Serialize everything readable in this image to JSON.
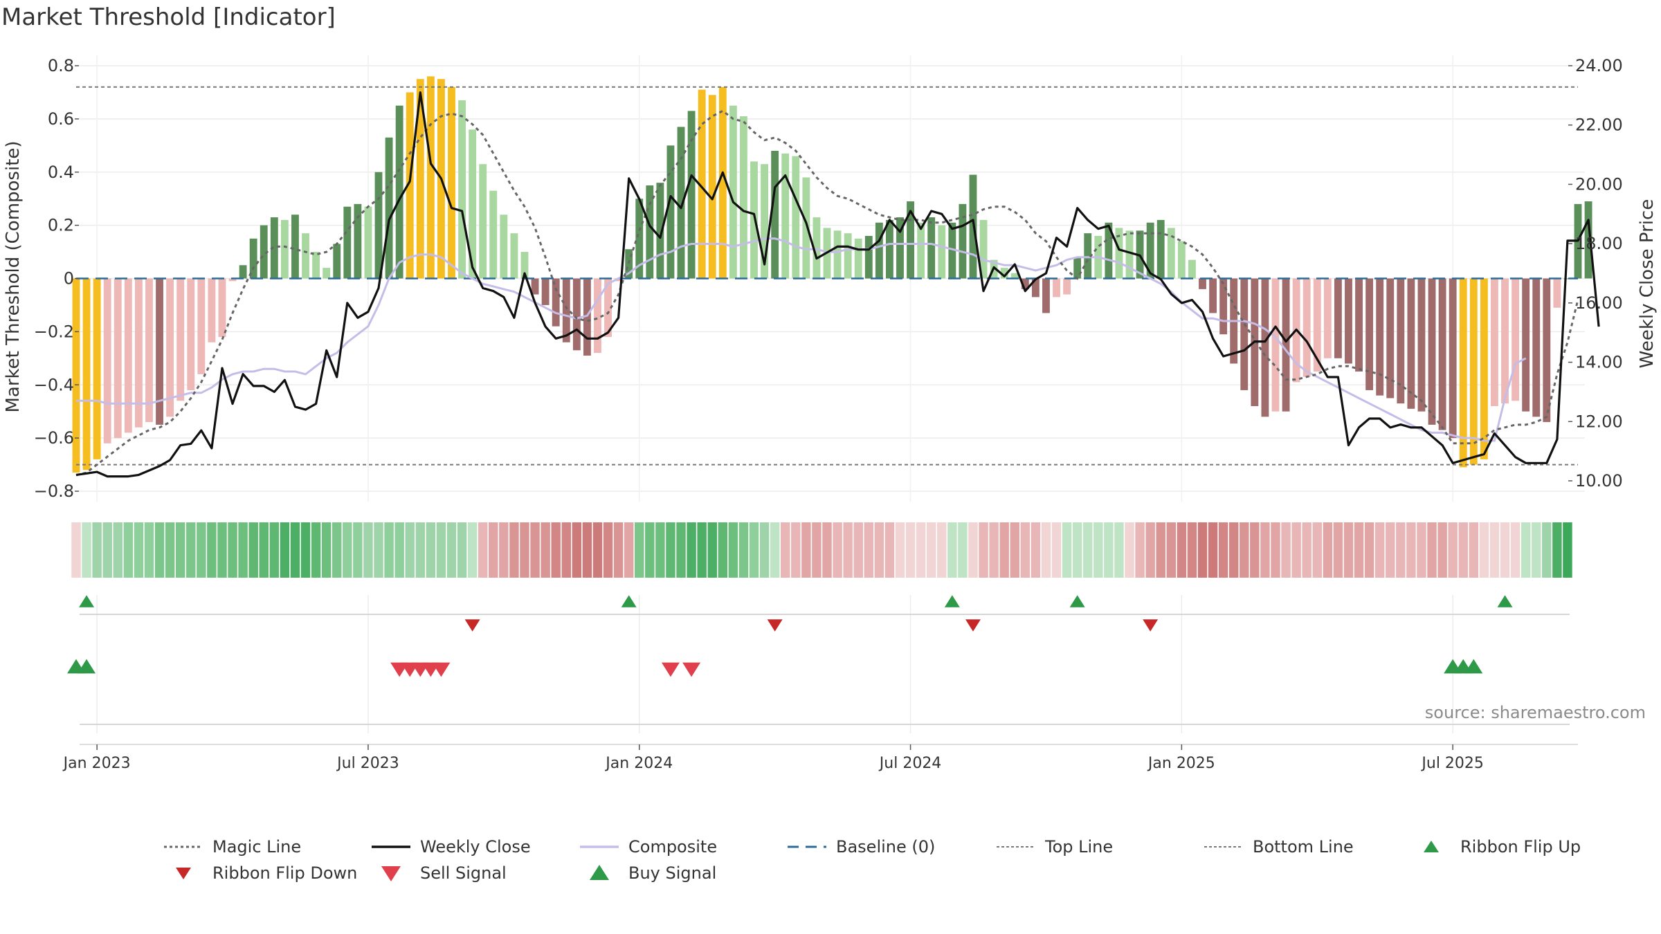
{
  "chart_data": {
    "type": "bar",
    "title": "Market Threshold [Indicator]",
    "ylabel_left": "Market Threshold (Composite)",
    "ylabel_right": "Weekly Close Price",
    "source": "source: sharemaestro.com",
    "ylim_left": [
      -0.8,
      0.8
    ],
    "ylim_right": [
      10,
      24
    ],
    "yticks_left": [
      0.8,
      0.6,
      0.4,
      0.2,
      0,
      -0.2,
      -0.4,
      -0.6,
      -0.8
    ],
    "ytick_labels_left": [
      "0.8",
      "0.6",
      "0.4",
      "0.2",
      "0",
      "−0.2",
      "−0.4",
      "−0.6",
      "−0.8"
    ],
    "yticks_right": [
      24,
      22,
      20,
      18,
      16,
      14,
      12,
      10
    ],
    "ytick_labels_right": [
      "24.00",
      "22.00",
      "20.00",
      "18.00",
      "16.00",
      "14.00",
      "12.00",
      "10.00"
    ],
    "top_line": 0.72,
    "bottom_line": -0.7,
    "baseline": 0,
    "x_start_week": -1,
    "n_weeks": 145,
    "x_ticks": [
      {
        "week": 1,
        "label": "Jan 2023"
      },
      {
        "week": 27,
        "label": "Jul 2023"
      },
      {
        "week": 53,
        "label": "Jan 2024"
      },
      {
        "week": 79,
        "label": "Jul 2024"
      },
      {
        "week": 105,
        "label": "Jan 2025"
      },
      {
        "week": 131,
        "label": "Jul 2025"
      }
    ],
    "composite_bars": [
      -0.73,
      -0.72,
      -0.68,
      -0.62,
      -0.6,
      -0.58,
      -0.56,
      -0.54,
      -0.55,
      -0.52,
      -0.46,
      -0.42,
      -0.36,
      -0.24,
      -0.22,
      -0.01,
      0.05,
      0.15,
      0.2,
      0.23,
      0.22,
      0.24,
      0.17,
      0.1,
      0.04,
      0.13,
      0.27,
      0.28,
      0.27,
      0.4,
      0.53,
      0.65,
      0.7,
      0.75,
      0.76,
      0.75,
      0.72,
      0.67,
      0.56,
      0.43,
      0.33,
      0.24,
      0.17,
      0.1,
      -0.06,
      -0.1,
      -0.18,
      -0.24,
      -0.27,
      -0.29,
      -0.28,
      -0.22,
      -0.01,
      0.11,
      0.3,
      0.35,
      0.36,
      0.5,
      0.57,
      0.63,
      0.71,
      0.69,
      0.72,
      0.65,
      0.61,
      0.44,
      0.43,
      0.48,
      0.47,
      0.46,
      0.38,
      0.23,
      0.19,
      0.18,
      0.17,
      0.15,
      0.16,
      0.21,
      0.22,
      0.23,
      0.29,
      0.21,
      0.23,
      0.2,
      0.21,
      0.28,
      0.39,
      0.22,
      0.07,
      0.04,
      0.02,
      -0.04,
      -0.07,
      -0.13,
      -0.07,
      -0.06,
      0.08,
      0.17,
      0.16,
      0.21,
      0.19,
      0.18,
      0.18,
      0.21,
      0.22,
      0.19,
      0.14,
      0.07,
      -0.04,
      -0.13,
      -0.21,
      -0.32,
      -0.42,
      -0.48,
      -0.52,
      -0.5,
      -0.5,
      -0.39,
      -0.37,
      -0.35,
      -0.3,
      -0.3,
      -0.32,
      -0.35,
      -0.42,
      -0.44,
      -0.45,
      -0.47,
      -0.49,
      -0.5,
      -0.55,
      -0.57,
      -0.6,
      -0.71,
      -0.7,
      -0.68,
      -0.48,
      -0.47,
      -0.46,
      -0.5,
      -0.52,
      -0.54,
      -0.11,
      0.0,
      0.28,
      0.29
    ],
    "weekly_close": [
      10.2,
      10.25,
      10.3,
      10.15,
      10.15,
      10.15,
      10.2,
      10.35,
      10.5,
      10.7,
      11.2,
      11.25,
      11.7,
      11.1,
      13.8,
      12.6,
      13.6,
      13.2,
      13.2,
      13.0,
      13.4,
      12.5,
      12.4,
      12.6,
      14.4,
      13.5,
      16.0,
      15.5,
      15.7,
      16.5,
      18.8,
      19.5,
      20.1,
      23.1,
      20.7,
      20.2,
      19.2,
      19.1,
      17.2,
      16.5,
      16.4,
      16.2,
      15.5,
      17.0,
      16.0,
      15.2,
      14.8,
      14.9,
      15.1,
      14.8,
      14.8,
      15.0,
      15.5,
      20.2,
      19.5,
      18.6,
      18.2,
      19.6,
      19.2,
      20.3,
      19.9,
      19.5,
      20.4,
      19.4,
      19.1,
      19.0,
      17.3,
      19.9,
      20.3,
      19.5,
      18.7,
      17.5,
      17.7,
      17.9,
      17.9,
      17.8,
      17.8,
      18.1,
      18.8,
      18.4,
      19.1,
      18.5,
      19.1,
      19.0,
      18.5,
      18.6,
      18.8,
      16.4,
      17.2,
      16.9,
      17.3,
      16.4,
      16.8,
      17.0,
      18.2,
      17.9,
      19.2,
      18.8,
      18.5,
      18.6,
      17.8,
      17.7,
      17.6,
      17.0,
      16.8,
      16.3,
      16.0,
      16.1,
      15.7,
      14.8,
      14.2,
      14.3,
      14.4,
      14.7,
      14.7,
      15.2,
      14.7,
      15.1,
      14.7,
      14.1,
      13.5,
      13.5,
      11.2,
      11.8,
      12.1,
      12.1,
      11.8,
      11.9,
      11.8,
      11.8,
      11.5,
      11.2,
      10.6,
      10.7,
      10.8,
      10.9,
      11.6,
      11.2,
      10.8,
      10.6,
      10.6,
      10.6,
      11.4,
      18.1,
      18.1,
      18.8,
      15.2
    ],
    "magic_line": [
      -0.74,
      -0.73,
      -0.7,
      -0.67,
      -0.64,
      -0.61,
      -0.59,
      -0.57,
      -0.56,
      -0.54,
      -0.5,
      -0.45,
      -0.39,
      -0.31,
      -0.23,
      -0.13,
      -0.04,
      0.04,
      0.09,
      0.12,
      0.12,
      0.11,
      0.1,
      0.09,
      0.1,
      0.13,
      0.18,
      0.23,
      0.27,
      0.3,
      0.35,
      0.41,
      0.47,
      0.53,
      0.58,
      0.61,
      0.62,
      0.61,
      0.58,
      0.54,
      0.47,
      0.4,
      0.33,
      0.27,
      0.19,
      0.08,
      -0.04,
      -0.11,
      -0.15,
      -0.16,
      -0.15,
      -0.13,
      -0.06,
      0.06,
      0.18,
      0.28,
      0.35,
      0.4,
      0.45,
      0.52,
      0.58,
      0.61,
      0.63,
      0.6,
      0.59,
      0.55,
      0.52,
      0.53,
      0.51,
      0.48,
      0.43,
      0.38,
      0.34,
      0.31,
      0.3,
      0.28,
      0.26,
      0.24,
      0.23,
      0.22,
      0.22,
      0.22,
      0.21,
      0.21,
      0.22,
      0.23,
      0.24,
      0.26,
      0.27,
      0.27,
      0.25,
      0.22,
      0.17,
      0.14,
      0.08,
      0.03,
      0.0,
      0.07,
      0.12,
      0.15,
      0.16,
      0.17,
      0.17,
      0.17,
      0.17,
      0.16,
      0.14,
      0.12,
      0.09,
      0.04,
      -0.02,
      -0.1,
      -0.17,
      -0.23,
      -0.29,
      -0.33,
      -0.38,
      -0.38,
      -0.37,
      -0.36,
      -0.34,
      -0.33,
      -0.33,
      -0.34,
      -0.35,
      -0.36,
      -0.38,
      -0.4,
      -0.43,
      -0.46,
      -0.51,
      -0.56,
      -0.62,
      -0.62,
      -0.62,
      -0.6,
      -0.57,
      -0.56,
      -0.55,
      -0.55,
      -0.54,
      -0.52,
      -0.36,
      -0.24,
      -0.08
    ],
    "composite_line": [
      -0.46,
      -0.46,
      -0.46,
      -0.47,
      -0.47,
      -0.47,
      -0.47,
      -0.47,
      -0.46,
      -0.45,
      -0.44,
      -0.43,
      -0.43,
      -0.41,
      -0.38,
      -0.36,
      -0.35,
      -0.35,
      -0.34,
      -0.34,
      -0.35,
      -0.35,
      -0.36,
      -0.33,
      -0.3,
      -0.28,
      -0.24,
      -0.21,
      -0.18,
      -0.1,
      0.0,
      0.06,
      0.08,
      0.09,
      0.09,
      0.08,
      0.05,
      0.02,
      0.0,
      -0.02,
      -0.03,
      -0.04,
      -0.05,
      -0.07,
      -0.09,
      -0.11,
      -0.13,
      -0.14,
      -0.15,
      -0.14,
      -0.08,
      -0.02,
      0.0,
      0.02,
      0.05,
      0.07,
      0.09,
      0.1,
      0.12,
      0.13,
      0.13,
      0.13,
      0.13,
      0.12,
      0.13,
      0.14,
      0.15,
      0.15,
      0.14,
      0.12,
      0.11,
      0.11,
      0.1,
      0.1,
      0.11,
      0.11,
      0.11,
      0.12,
      0.13,
      0.13,
      0.13,
      0.13,
      0.13,
      0.12,
      0.11,
      0.1,
      0.09,
      0.07,
      0.06,
      0.05,
      0.05,
      0.04,
      0.03,
      0.04,
      0.05,
      0.07,
      0.08,
      0.08,
      0.08,
      0.07,
      0.06,
      0.04,
      0.02,
      0.0,
      -0.02,
      -0.05,
      -0.09,
      -0.12,
      -0.15,
      -0.15,
      -0.16,
      -0.16,
      -0.16,
      -0.17,
      -0.19,
      -0.22,
      -0.27,
      -0.32,
      -0.35,
      -0.37,
      -0.39,
      -0.41,
      -0.43,
      -0.45,
      -0.47,
      -0.49,
      -0.51,
      -0.53,
      -0.55,
      -0.57,
      -0.58,
      -0.58,
      -0.59,
      -0.6,
      -0.6,
      -0.61,
      -0.61,
      -0.45,
      -0.32,
      -0.3
    ],
    "ribbon_colors": [
      "#f1d4d4",
      "#bfe3c5",
      "#9fd4aa",
      "#9fd4aa",
      "#9fd4aa",
      "#8fcf9c",
      "#8fcf9c",
      "#8fcf9c",
      "#7cc68b",
      "#7cc68b",
      "#7cc68b",
      "#7cc68b",
      "#7cc68b",
      "#6dbf7e",
      "#6dbf7e",
      "#6dbf7e",
      "#6dbf7e",
      "#5fb872",
      "#5fb872",
      "#5fb872",
      "#4dae66",
      "#4dae66",
      "#4dae66",
      "#5fb872",
      "#6dbf7e",
      "#7cc68b",
      "#8fcf9c",
      "#8fcf9c",
      "#9fd4aa",
      "#9fd4aa",
      "#8fcf9c",
      "#8fcf9c",
      "#9fd4aa",
      "#9fd4aa",
      "#9fd4aa",
      "#9fd4aa",
      "#9fd4aa",
      "#9fd4aa",
      "#bfe3c5",
      "#e8b6b6",
      "#e1a5a5",
      "#e1a5a5",
      "#d99494",
      "#d99494",
      "#d99494",
      "#d99494",
      "#d38686",
      "#d38686",
      "#cc7a7a",
      "#cc7a7a",
      "#cc7a7a",
      "#d38686",
      "#d99494",
      "#e1a5a5",
      "#7cc68b",
      "#6dbf7e",
      "#6dbf7e",
      "#5fb872",
      "#5fb872",
      "#4dae66",
      "#4dae66",
      "#4dae66",
      "#5fb872",
      "#6dbf7e",
      "#7cc68b",
      "#8fcf9c",
      "#9fd4aa",
      "#bfe3c5",
      "#e8b6b6",
      "#e8b6b6",
      "#e1a5a5",
      "#e1a5a5",
      "#e1a5a5",
      "#e8b6b6",
      "#e8b6b6",
      "#e8b6b6",
      "#e8b6b6",
      "#e8b6b6",
      "#e8b6b6",
      "#f1d4d4",
      "#f1d4d4",
      "#f1d4d4",
      "#f1d4d4",
      "#f1d4d4",
      "#bfe3c5",
      "#bfe3c5",
      "#f1d4d4",
      "#e8b6b6",
      "#e8b6b6",
      "#e1a5a5",
      "#e1a5a5",
      "#e8b6b6",
      "#e8b6b6",
      "#f1d4d4",
      "#f1d4d4",
      "#bfe3c5",
      "#bfe3c5",
      "#bfe3c5",
      "#bfe3c5",
      "#bfe3c5",
      "#bfe3c5",
      "#f1d4d4",
      "#e8b6b6",
      "#e1a5a5",
      "#d99494",
      "#d99494",
      "#d38686",
      "#d38686",
      "#cc7a7a",
      "#cc7a7a",
      "#d38686",
      "#d38686",
      "#d99494",
      "#d99494",
      "#e1a5a5",
      "#e1a5a5",
      "#e8b6b6",
      "#e8b6b6",
      "#e8b6b6",
      "#e8b6b6",
      "#e1a5a5",
      "#e1a5a5",
      "#e1a5a5",
      "#e1a5a5",
      "#e1a5a5",
      "#e8b6b6",
      "#e8b6b6",
      "#e8b6b6",
      "#e8b6b6",
      "#e8b6b6",
      "#e1a5a5",
      "#e1a5a5",
      "#e8b6b6",
      "#e8b6b6",
      "#e8b6b6",
      "#f1d4d4",
      "#f1d4d4",
      "#f1d4d4",
      "#f1d4d4",
      "#bfe3c5",
      "#bfe3c5",
      "#9fd4aa",
      "#4dae66",
      "#3da85a"
    ],
    "ribbon_flip_up_weeks": [
      0,
      52,
      83,
      95,
      136
    ],
    "ribbon_flip_down_weeks": [
      37,
      66,
      85,
      102
    ],
    "buy_signal_weeks": [
      -1,
      0,
      131,
      132,
      133
    ],
    "sell_signal_weeks": [
      30,
      31,
      32,
      33,
      34,
      56,
      58
    ],
    "legend": [
      "Magic Line",
      "Weekly Close",
      "Composite",
      "Baseline (0)",
      "Top Line",
      "Bottom Line",
      "Ribbon Flip Up",
      "Ribbon Flip Down",
      "Sell Signal",
      "Buy Signal"
    ],
    "colors": {
      "strong_bull": "#2e7d32",
      "bull_dark": "#5a8f5a",
      "bull_light": "#a8d8a0",
      "bear_dark": "#a06b6b",
      "bear_light": "#edb8b6",
      "extreme": "#f5bd1f",
      "weekly_close": "#111111",
      "composite": "#c5bde8",
      "magic": "#666666",
      "baseline": "#2c6a9a",
      "threshold": "#777777",
      "flip_up": "#2e9a48",
      "flip_down": "#c62828",
      "sell": "#e0404c",
      "buy": "#2e9a48"
    }
  }
}
